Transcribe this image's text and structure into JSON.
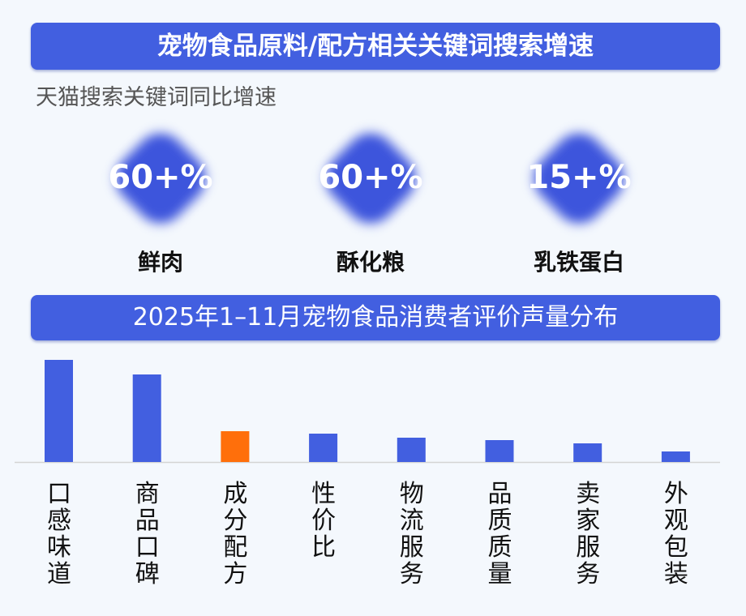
{
  "title": "宠物食品原料/配方相关关键词搜索增速",
  "subtitle": "天猫搜索关键词同比增速",
  "stats": [
    {
      "value": "60+%",
      "label": "鲜肉"
    },
    {
      "value": "60+%",
      "label": "酥化粮"
    },
    {
      "value": "15+%",
      "label": "乳铁蛋白"
    }
  ],
  "chart_data": {
    "type": "bar",
    "title": "2025年1–11月宠物食品消费者评价声量分布",
    "categories": [
      "口感味道",
      "商品口碑",
      "成分配方",
      "性价比",
      "物流服务",
      "品质质量",
      "卖家服务",
      "外观包装"
    ],
    "values": [
      126,
      108,
      38,
      35,
      30,
      27,
      23,
      13
    ],
    "value_note": "relative volume, no axis printed",
    "highlight_index": 2,
    "colors": {
      "bar": "#425fe0",
      "highlight": "#ff6f0b"
    },
    "grid": false,
    "legend": "none"
  }
}
